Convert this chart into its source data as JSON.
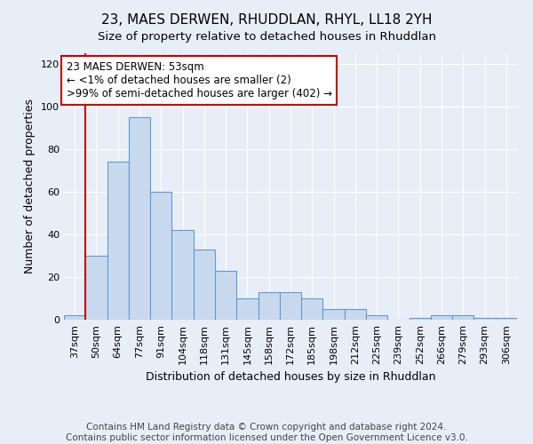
{
  "title": "23, MAES DERWEN, RHUDDLAN, RHYL, LL18 2YH",
  "subtitle": "Size of property relative to detached houses in Rhuddlan",
  "xlabel": "Distribution of detached houses by size in Rhuddlan",
  "ylabel": "Number of detached properties",
  "bar_labels": [
    "37sqm",
    "50sqm",
    "64sqm",
    "77sqm",
    "91sqm",
    "104sqm",
    "118sqm",
    "131sqm",
    "145sqm",
    "158sqm",
    "172sqm",
    "185sqm",
    "198sqm",
    "212sqm",
    "225sqm",
    "239sqm",
    "252sqm",
    "266sqm",
    "279sqm",
    "293sqm",
    "306sqm"
  ],
  "bar_values": [
    2,
    30,
    74,
    95,
    60,
    42,
    33,
    23,
    10,
    13,
    13,
    10,
    5,
    5,
    2,
    0,
    1,
    2,
    2,
    1,
    1
  ],
  "bar_color": "#c9d9ed",
  "bar_edge_color": "#5b9bd5",
  "background_color": "#e8eef7",
  "grid_color": "#ffffff",
  "red_line_x": 0.5,
  "annotation_title": "23 MAES DERWEN: 53sqm",
  "annotation_line1": "← <1% of detached houses are smaller (2)",
  "annotation_line2": ">99% of semi-detached houses are larger (402) →",
  "annotation_box_color": "#ffffff",
  "annotation_box_edge": "#cc0000",
  "red_line_color": "#cc0000",
  "ylim": [
    0,
    125
  ],
  "yticks": [
    0,
    20,
    40,
    60,
    80,
    100,
    120
  ],
  "footer": "Contains HM Land Registry data © Crown copyright and database right 2024.\nContains public sector information licensed under the Open Government Licence v3.0.",
  "title_fontsize": 11,
  "subtitle_fontsize": 10,
  "xlabel_fontsize": 9,
  "ylabel_fontsize": 9,
  "tick_fontsize": 8,
  "annotation_fontsize": 8.5,
  "footer_fontsize": 7.5
}
